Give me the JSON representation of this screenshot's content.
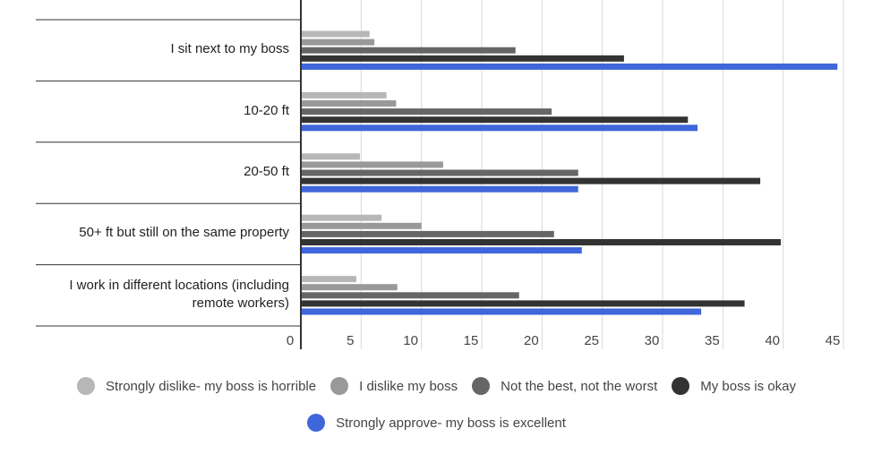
{
  "chart_data": {
    "type": "bar",
    "orientation": "horizontal",
    "categories": [
      "I sit next to my boss",
      "10-20 ft",
      "20-50 ft",
      "50+ ft but still on the same property",
      "I work in different locations (including remote workers)"
    ],
    "category_lines": [
      [
        "I sit next to my boss"
      ],
      [
        "10-20 ft"
      ],
      [
        "20-50 ft"
      ],
      [
        "50+ ft but still on the same property"
      ],
      [
        "I work in different locations (including",
        "remote workers)"
      ]
    ],
    "series": [
      {
        "name": "Strongly dislike- my boss is horrible",
        "color": "#b7b7b7",
        "values": [
          5.7,
          7.1,
          4.9,
          6.7,
          4.6
        ]
      },
      {
        "name": "I dislike my boss",
        "color": "#999999",
        "values": [
          6.1,
          7.9,
          11.8,
          10.0,
          8.0
        ]
      },
      {
        "name": "Not the best, not the worst",
        "color": "#666666",
        "values": [
          17.8,
          20.8,
          23.0,
          21.0,
          18.1
        ]
      },
      {
        "name": "My boss is okay",
        "color": "#333333",
        "values": [
          26.8,
          32.1,
          38.1,
          39.8,
          36.8
        ]
      },
      {
        "name": "Strongly approve- my boss is excellent",
        "color": "#3f66db",
        "values": [
          44.5,
          32.9,
          23.0,
          23.3,
          33.2
        ]
      }
    ],
    "x_ticks": [
      0,
      5,
      10,
      15,
      20,
      25,
      30,
      35,
      40,
      45
    ],
    "xlim": [
      0,
      45
    ],
    "grid": true,
    "legend_position": "bottom"
  }
}
